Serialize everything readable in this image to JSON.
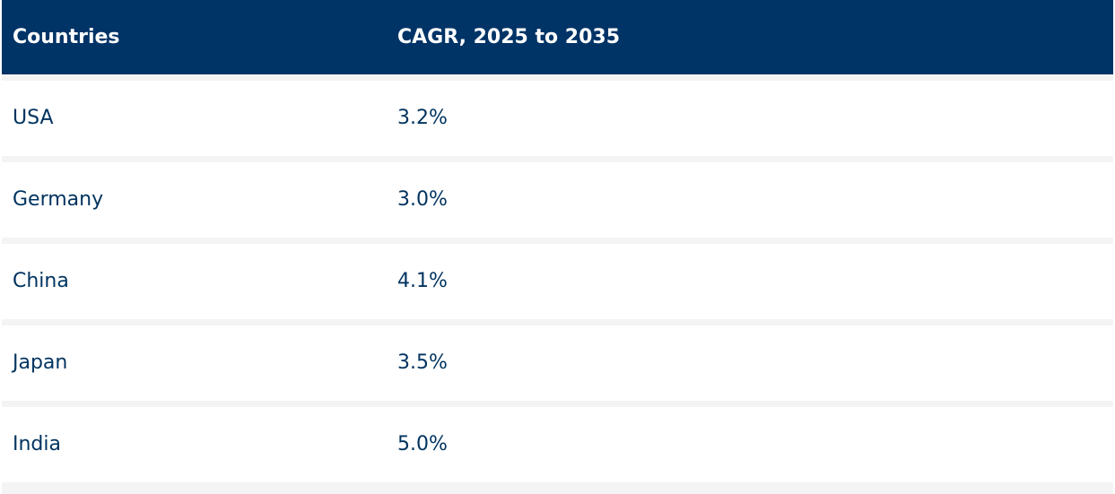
{
  "table": {
    "headers": [
      "Countries",
      "CAGR, 2025 to 2035"
    ],
    "rows": [
      {
        "country": "USA",
        "cagr": "3.2%"
      },
      {
        "country": "Germany",
        "cagr": "3.0%"
      },
      {
        "country": "China",
        "cagr": "4.1%"
      },
      {
        "country": "Japan",
        "cagr": "3.5%"
      },
      {
        "country": "India",
        "cagr": "5.0%"
      }
    ]
  },
  "colors": {
    "header_background": "#003366",
    "header_text": "#ffffff",
    "body_text": "#00335f",
    "row_background": "#ffffff",
    "row_separator": "#f4f4f4"
  }
}
